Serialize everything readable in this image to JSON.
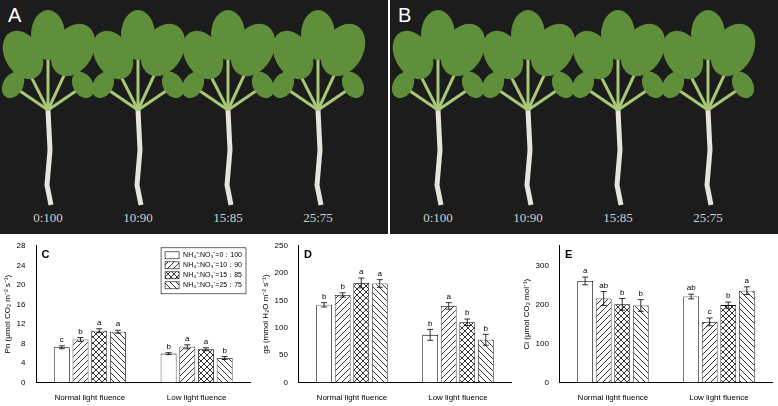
{
  "photos": [
    {
      "label": "A",
      "captions": [
        "0:100",
        "10:90",
        "15:85",
        "25:75"
      ]
    },
    {
      "label": "B",
      "captions": [
        "0:100",
        "10:90",
        "15:85",
        "25:75"
      ]
    }
  ],
  "chart_data": [
    {
      "type": "bar",
      "title": "C",
      "y_label": "Pn (μmol CO₂ m⁻² s⁻¹)",
      "categories": [
        "Normal light fluence",
        "Low light fluence"
      ],
      "ylim": [
        0,
        28
      ],
      "yticks": [
        0,
        4,
        8,
        12,
        16,
        20,
        24,
        28
      ],
      "grid": false,
      "legend": "upper right",
      "series": [
        {
          "name": "NH₄⁺:NO₃⁻=0：100",
          "color": "#ffffff",
          "values": [
            7.2,
            5.9
          ],
          "errors": [
            0.3,
            0.2
          ],
          "letters": [
            "c",
            "b"
          ]
        },
        {
          "name": "NH₄⁺:NO₃⁻=10：90",
          "color": "#ffffff",
          "values": [
            8.8,
            7.3
          ],
          "errors": [
            0.4,
            0.4
          ],
          "letters": [
            "b",
            "a"
          ]
        },
        {
          "name": "NH₄⁺:NO₃⁻=15：85",
          "color": "#ffffff",
          "values": [
            10.6,
            6.8
          ],
          "errors": [
            0.4,
            0.3
          ],
          "letters": [
            "a",
            "a"
          ]
        },
        {
          "name": "NH₄⁺:NO₃⁻=25：75",
          "color": "#ffffff",
          "values": [
            10.4,
            5.0
          ],
          "errors": [
            0.3,
            0.3
          ],
          "letters": [
            "a",
            "b"
          ]
        }
      ]
    },
    {
      "type": "bar",
      "title": "D",
      "y_label": "gs (mmol H₂O m⁻² s⁻¹)",
      "categories": [
        "Normal light fluence",
        "Low light fluence"
      ],
      "ylim": [
        0,
        250
      ],
      "yticks": [
        0,
        50,
        100,
        150,
        200,
        250
      ],
      "grid": false,
      "series": [
        {
          "color": "#ffffff",
          "values": [
            142,
            87
          ],
          "errors": [
            4,
            10
          ],
          "letters": [
            "b",
            "b"
          ]
        },
        {
          "color": "#ffffff",
          "values": [
            160,
            140
          ],
          "errors": [
            4,
            6
          ],
          "letters": [
            "b",
            "a"
          ]
        },
        {
          "color": "#ffffff",
          "values": [
            182,
            110
          ],
          "errors": [
            9,
            6
          ],
          "letters": [
            "a",
            "b"
          ]
        },
        {
          "color": "#ffffff",
          "values": [
            181,
            78
          ],
          "errors": [
            7,
            10
          ],
          "letters": [
            "a",
            "b"
          ]
        }
      ]
    },
    {
      "type": "bar",
      "title": "E",
      "y_label": "Ci (μmol CO₂ mol⁻¹)",
      "categories": [
        "Normal light fluence",
        "Low light fluence"
      ],
      "ylim": [
        0,
        350
      ],
      "yticks": [
        0,
        100,
        200,
        300
      ],
      "grid": false,
      "series": [
        {
          "color": "#ffffff",
          "values": [
            260,
            220
          ],
          "errors": [
            10,
            6
          ],
          "letters": [
            "a",
            "ab"
          ]
        },
        {
          "color": "#ffffff",
          "values": [
            215,
            155
          ],
          "errors": [
            18,
            10
          ],
          "letters": [
            "ab",
            "c"
          ]
        },
        {
          "color": "#ffffff",
          "values": [
            200,
            198
          ],
          "errors": [
            15,
            8
          ],
          "letters": [
            "b",
            "b"
          ]
        },
        {
          "color": "#ffffff",
          "values": [
            197,
            235
          ],
          "errors": [
            15,
            10
          ],
          "letters": [
            "b",
            "a"
          ]
        }
      ]
    }
  ]
}
